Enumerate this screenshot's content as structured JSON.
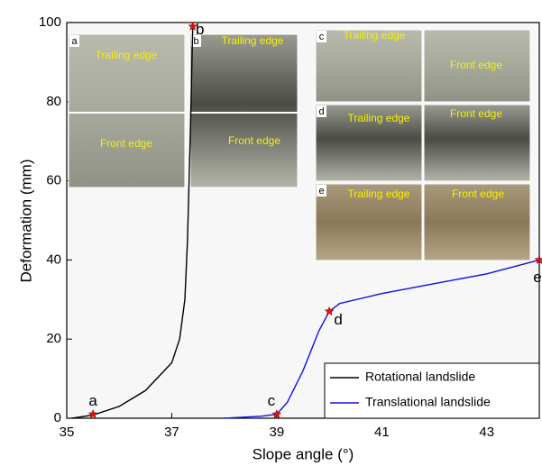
{
  "chart_data": {
    "type": "line",
    "xlabel": "Slope angle (°)",
    "ylabel": "Deformation (mm)",
    "xlim": [
      35,
      44
    ],
    "xticks": [
      35,
      37,
      39,
      41,
      43
    ],
    "ylim": [
      0,
      100
    ],
    "yticks": [
      0,
      20,
      40,
      60,
      80,
      100
    ],
    "series": [
      {
        "name": "Rotational landslide",
        "color": "#000000",
        "x": [
          35.1,
          35.5,
          36,
          36.5,
          37,
          37.15,
          37.25,
          37.3,
          37.35,
          37.4
        ],
        "values": [
          0,
          0.8,
          3,
          7,
          14,
          20,
          30,
          45,
          70,
          99
        ]
      },
      {
        "name": "Translational landslide",
        "color": "#1010e0",
        "x": [
          38,
          38.7,
          39,
          39.2,
          39.5,
          39.8,
          40,
          40.2,
          41,
          42,
          43,
          44
        ],
        "values": [
          0,
          0.5,
          1,
          4,
          12,
          22,
          27,
          29,
          31.5,
          34,
          36.5,
          40
        ]
      }
    ],
    "points": {
      "color": "#e01010",
      "labels": [
        "a",
        "b",
        "c",
        "d",
        "e"
      ],
      "x": [
        35.5,
        37.4,
        39,
        40,
        44
      ],
      "values": [
        1,
        99,
        1,
        27,
        40
      ]
    },
    "insets": [
      {
        "label": "a",
        "texts": [
          "Trailing edge",
          "Front edge"
        ]
      },
      {
        "label": "b",
        "texts": [
          "Trailing edge",
          "Front edge"
        ]
      },
      {
        "label": "c",
        "texts": [
          "Trailing edge",
          "Front edge"
        ]
      },
      {
        "label": "d",
        "texts": [
          "Trailing edge",
          "Front edge"
        ]
      },
      {
        "label": "e",
        "texts": [
          "Trailing edge",
          "Front edge"
        ]
      }
    ]
  }
}
